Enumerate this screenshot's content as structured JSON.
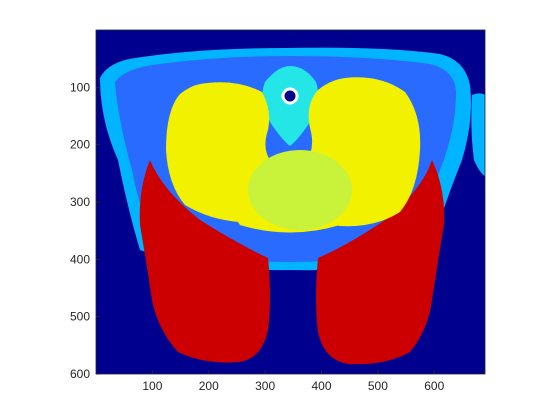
{
  "colors": {
    "background": "#00008F",
    "tissue_light": "#00B4FF",
    "tissue_mid": "#2A6BFF",
    "tissue_cyan": "#25E6E6",
    "organ_yellow": "#F2F200",
    "organ_inner": "#C9F23A",
    "region_red": "#CC0000",
    "axes": "#262626"
  },
  "chart_data": {
    "type": "heatmap",
    "title": "",
    "xlabel": "",
    "ylabel": "",
    "xlim": [
      0,
      690
    ],
    "ylim": [
      600,
      0
    ],
    "xticks": [
      100,
      200,
      300,
      400,
      500,
      600
    ],
    "yticks": [
      100,
      200,
      300,
      400,
      500,
      600
    ]
  }
}
